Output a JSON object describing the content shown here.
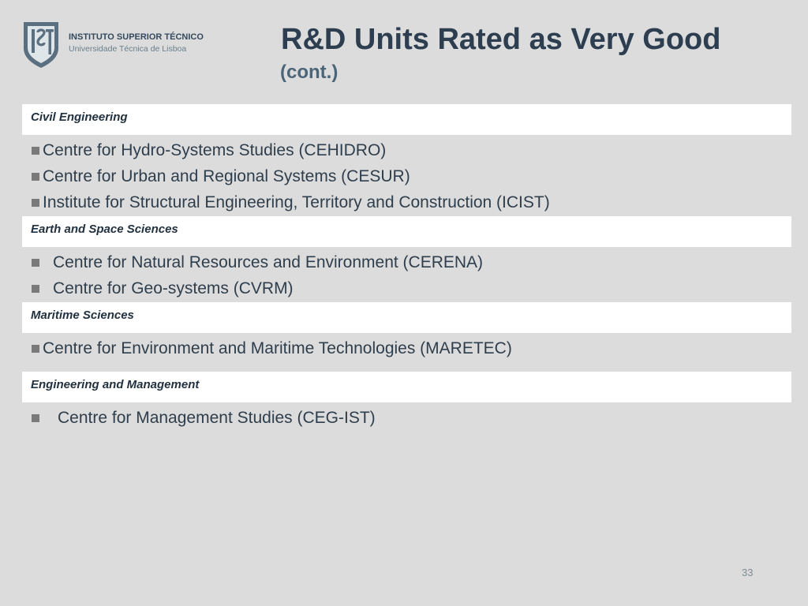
{
  "header": {
    "institution": "INSTITUTO SUPERIOR TÉCNICO",
    "institution_sub": "Universidade Técnica de Lisboa",
    "title": "R&D Units Rated as Very Good",
    "subtitle": "(cont.)"
  },
  "sections": [
    {
      "category": "Civil Engineering",
      "items": [
        "Centre for Hydro-Systems Studies (CEHIDRO)",
        "Centre for Urban and Regional Systems (CESUR)",
        "Institute for Structural Engineering, Territory and Construction (ICIST)"
      ]
    },
    {
      "category": "Earth and Space Sciences",
      "items": [
        "Centre for Natural Resources and Environment (CERENA)",
        "Centre for Geo-systems (CVRM)"
      ]
    },
    {
      "category": "Maritime Sciences",
      "items": [
        "Centre for Environment and Maritime Technologies (MARETEC)"
      ]
    },
    {
      "category": "Engineering and Management",
      "items": [
        "Centre for Management Studies (CEG-IST)"
      ]
    }
  ],
  "footer": {
    "page_number": "33"
  },
  "colors": {
    "background": "#dcdcdc",
    "title": "#2c3e50",
    "category_box": "#ffffff",
    "logo": "#5a6f80"
  }
}
